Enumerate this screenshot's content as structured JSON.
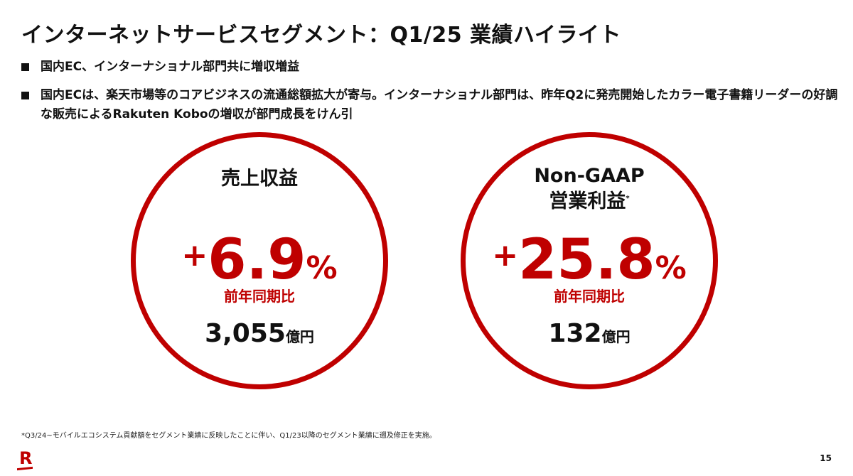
{
  "title": "インターネットサービスセグメント：Q1/25 業績ハイライト",
  "bullets": [
    "国内EC、インターナショナル部門共に増収増益",
    "国内ECは、楽天市場等のコアビジネスの流通総額拡大が寄与。インターナショナル部門は、昨年Q2に発売開始したカラー電子書籍リーダーの好調な販売によるRakuten Koboの増収が部門成長をけん引"
  ],
  "metrics": [
    {
      "label": "売上収益",
      "label2": "",
      "sign": "+",
      "value": "6.9",
      "pct": "%",
      "yoy": "前年同期比",
      "amount": "3,055",
      "unit": "億円"
    },
    {
      "label": "Non-GAAP",
      "label2": "営業利益",
      "mark": "*",
      "sign": "+",
      "value": "25.8",
      "pct": "%",
      "yoy": "前年同期比",
      "amount": "132",
      "unit": "億円"
    }
  ],
  "footnote": "*Q3/24~モバイルエコシステム貢献額をセグメント業績に反映したことに伴い、Q1/23以降のセグメント業績に遡及修正を実施。",
  "logo": "R",
  "page_number": "15",
  "colors": {
    "accent": "#bf0000"
  }
}
